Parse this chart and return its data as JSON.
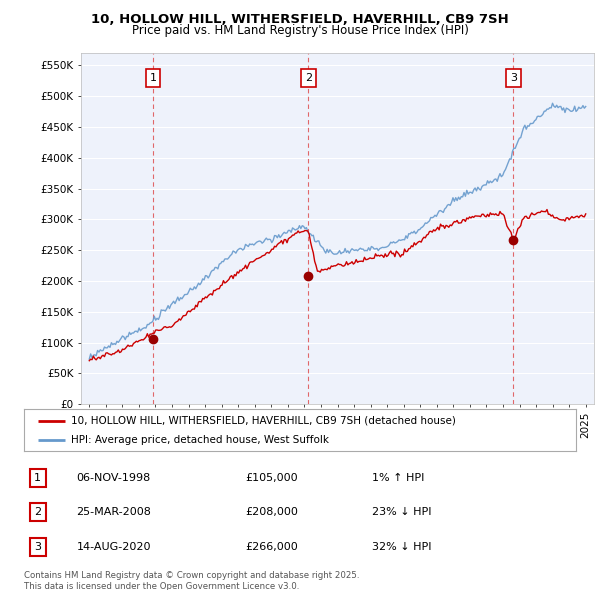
{
  "title_line1": "10, HOLLOW HILL, WITHERSFIELD, HAVERHILL, CB9 7SH",
  "title_line2": "Price paid vs. HM Land Registry's House Price Index (HPI)",
  "ylabel_ticks": [
    "£0",
    "£50K",
    "£100K",
    "£150K",
    "£200K",
    "£250K",
    "£300K",
    "£350K",
    "£400K",
    "£450K",
    "£500K",
    "£550K"
  ],
  "ytick_values": [
    0,
    50000,
    100000,
    150000,
    200000,
    250000,
    300000,
    350000,
    400000,
    450000,
    500000,
    550000
  ],
  "xlim": [
    1994.5,
    2025.5
  ],
  "ylim": [
    0,
    570000
  ],
  "purchase_dates": [
    1998.85,
    2008.23,
    2020.62
  ],
  "purchase_prices": [
    105000,
    208000,
    266000
  ],
  "purchase_labels": [
    "1",
    "2",
    "3"
  ],
  "purchase_info": [
    {
      "label": "1",
      "date": "06-NOV-1998",
      "price": "£105,000",
      "hpi_text": "1% ↑ HPI"
    },
    {
      "label": "2",
      "date": "25-MAR-2008",
      "price": "£208,000",
      "hpi_text": "23% ↓ HPI"
    },
    {
      "label": "3",
      "date": "14-AUG-2020",
      "price": "£266,000",
      "hpi_text": "32% ↓ HPI"
    }
  ],
  "vline_dates": [
    1998.85,
    2008.23,
    2020.62
  ],
  "house_line_color": "#cc0000",
  "hpi_line_color": "#6699cc",
  "background_color": "#eef2fb",
  "legend_house": "10, HOLLOW HILL, WITHERSFIELD, HAVERHILL, CB9 7SH (detached house)",
  "legend_hpi": "HPI: Average price, detached house, West Suffolk",
  "footnote": "Contains HM Land Registry data © Crown copyright and database right 2025.\nThis data is licensed under the Open Government Licence v3.0.",
  "xtick_years": [
    1995,
    1996,
    1997,
    1998,
    1999,
    2000,
    2001,
    2002,
    2003,
    2004,
    2005,
    2006,
    2007,
    2008,
    2009,
    2010,
    2011,
    2012,
    2013,
    2014,
    2015,
    2016,
    2017,
    2018,
    2019,
    2020,
    2021,
    2022,
    2023,
    2024,
    2025
  ]
}
